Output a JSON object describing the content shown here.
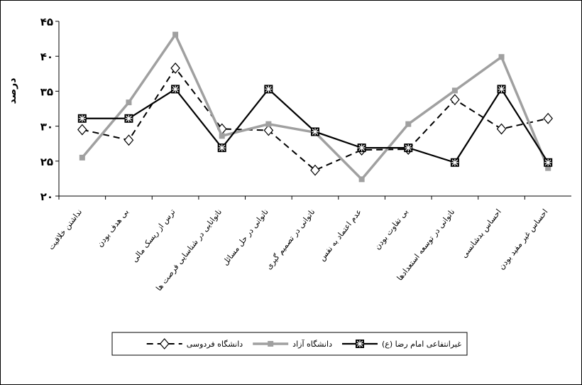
{
  "chart_data": {
    "type": "line",
    "y_label": "درصد",
    "categories": [
      "نداشتن خلاقیت",
      "بی هدف بودن",
      "ترس از ریسک مالی",
      "ناتوانایی در شناسایی فرصت ها",
      "ناتوانی در حل مسائل",
      "ناتوانی در تصمیم گیری",
      "عدم اعتماد به نفس",
      "بی تفاوت بودن",
      "ناتوانی در توسعه استعدادها",
      "احساس بدشانسی",
      "احساس غیر مفید بودن"
    ],
    "series": [
      {
        "name": "دانشگاه فردوسی",
        "color": "#000000",
        "values": [
          29.5,
          28,
          38.3,
          29.6,
          29.4,
          23.7,
          26.6,
          26.7,
          33.8,
          29.6,
          31.1
        ]
      },
      {
        "name": "دانشگاه آزاد",
        "color": "#a0a0a0",
        "values": [
          25.5,
          33.4,
          43.1,
          28.6,
          30.3,
          29.1,
          22.4,
          30.3,
          35.1,
          39.9,
          24
        ]
      },
      {
        "name": "غیرانتفاعی امام رضا (ع)",
        "color": "#000000",
        "values": [
          31.1,
          31.1,
          35.3,
          26.9,
          35.3,
          29.2,
          26.9,
          26.9,
          24.8,
          35.3,
          24.8
        ]
      }
    ],
    "ylim": [
      20,
      45
    ],
    "yticks": [
      {
        "value": 20,
        "label": "۲۰"
      },
      {
        "value": 25,
        "label": "۲۵"
      },
      {
        "value": 30,
        "label": "۳۰"
      },
      {
        "value": 35,
        "label": "۳۵"
      },
      {
        "value": 40,
        "label": "۴۰"
      },
      {
        "value": 45,
        "label": "۴۵"
      }
    ]
  }
}
